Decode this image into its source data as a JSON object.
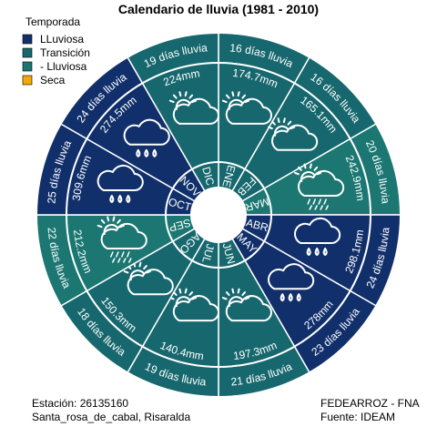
{
  "title": "Calendario de lluvia (1981 - 2010)",
  "legend": {
    "title": "Temporada",
    "items": [
      {
        "label": "LLuviosa",
        "color": "#11306b"
      },
      {
        "label": "Transición",
        "color": "#17686e"
      },
      {
        "label": "- Lluviosa",
        "color": "#1c7772"
      },
      {
        "label": "Seca",
        "color": "#f5a800"
      }
    ]
  },
  "footer": {
    "station": "Estación: 26135160",
    "location": "Santa_rosa_de_cabal, Risaralda",
    "org": "FEDEARROZ - FNA",
    "source": "Fuente: IDEAM"
  },
  "chart_data": {
    "type": "polar-calendar",
    "title": "Calendario de lluvia (1981 - 2010)",
    "legend_title": "Temporada",
    "months": [
      {
        "month": "ENE",
        "days_label": "16 días lluvia",
        "days": 16,
        "rain_label": "174.7mm",
        "rain_mm": 174.7,
        "season": "Transición",
        "icon": "cloud-sun-icon"
      },
      {
        "month": "FEB",
        "days_label": "16 días lluvia",
        "days": 16,
        "rain_label": "165.1mm",
        "rain_mm": 165.1,
        "season": "Transición",
        "icon": "cloud-sun-icon"
      },
      {
        "month": "MAR",
        "days_label": "20 días lluvia",
        "days": 20,
        "rain_label": "242.9mm",
        "rain_mm": 242.9,
        "season": "- Lluviosa",
        "icon": "cloud-sun-drizzle-icon"
      },
      {
        "month": "ABR",
        "days_label": "24 días lluvia",
        "days": 24,
        "rain_label": "298.1mm",
        "rain_mm": 298.1,
        "season": "LLuviosa",
        "icon": "cloud-rain-icon"
      },
      {
        "month": "MAY",
        "days_label": "23 días lluvia",
        "days": 23,
        "rain_label": "278mm",
        "rain_mm": 278,
        "season": "LLuviosa",
        "icon": "cloud-rain-icon"
      },
      {
        "month": "JUN",
        "days_label": "21 días lluvia",
        "days": 21,
        "rain_label": "197.3mm",
        "rain_mm": 197.3,
        "season": "Transición",
        "icon": "cloud-sun-icon"
      },
      {
        "month": "JUL",
        "days_label": "19 días lluvia",
        "days": 19,
        "rain_label": "140.4mm",
        "rain_mm": 140.4,
        "season": "Transición",
        "icon": "cloud-sun-icon"
      },
      {
        "month": "AGO",
        "days_label": "18 días lluvia",
        "days": 18,
        "rain_label": "150.3mm",
        "rain_mm": 150.3,
        "season": "Transición",
        "icon": "cloud-sun-icon"
      },
      {
        "month": "SEP",
        "days_label": "22 días lluvia",
        "days": 22,
        "rain_label": "212.2mm",
        "rain_mm": 212.2,
        "season": "- Lluviosa",
        "icon": "cloud-sun-drizzle-icon"
      },
      {
        "month": "OCT",
        "days_label": "25 días lluvia",
        "days": 25,
        "rain_label": "309.6mm",
        "rain_mm": 309.6,
        "season": "LLuviosa",
        "icon": "cloud-rain-icon"
      },
      {
        "month": "NOV",
        "days_label": "24 días lluvia",
        "days": 24,
        "rain_label": "274.5mm",
        "rain_mm": 274.5,
        "season": "LLuviosa",
        "icon": "cloud-rain-icon"
      },
      {
        "month": "DIC",
        "days_label": "19 días lluvia",
        "days": 19,
        "rain_label": "224mm",
        "rain_mm": 224,
        "season": "Transición",
        "icon": "cloud-sun-icon"
      }
    ]
  }
}
